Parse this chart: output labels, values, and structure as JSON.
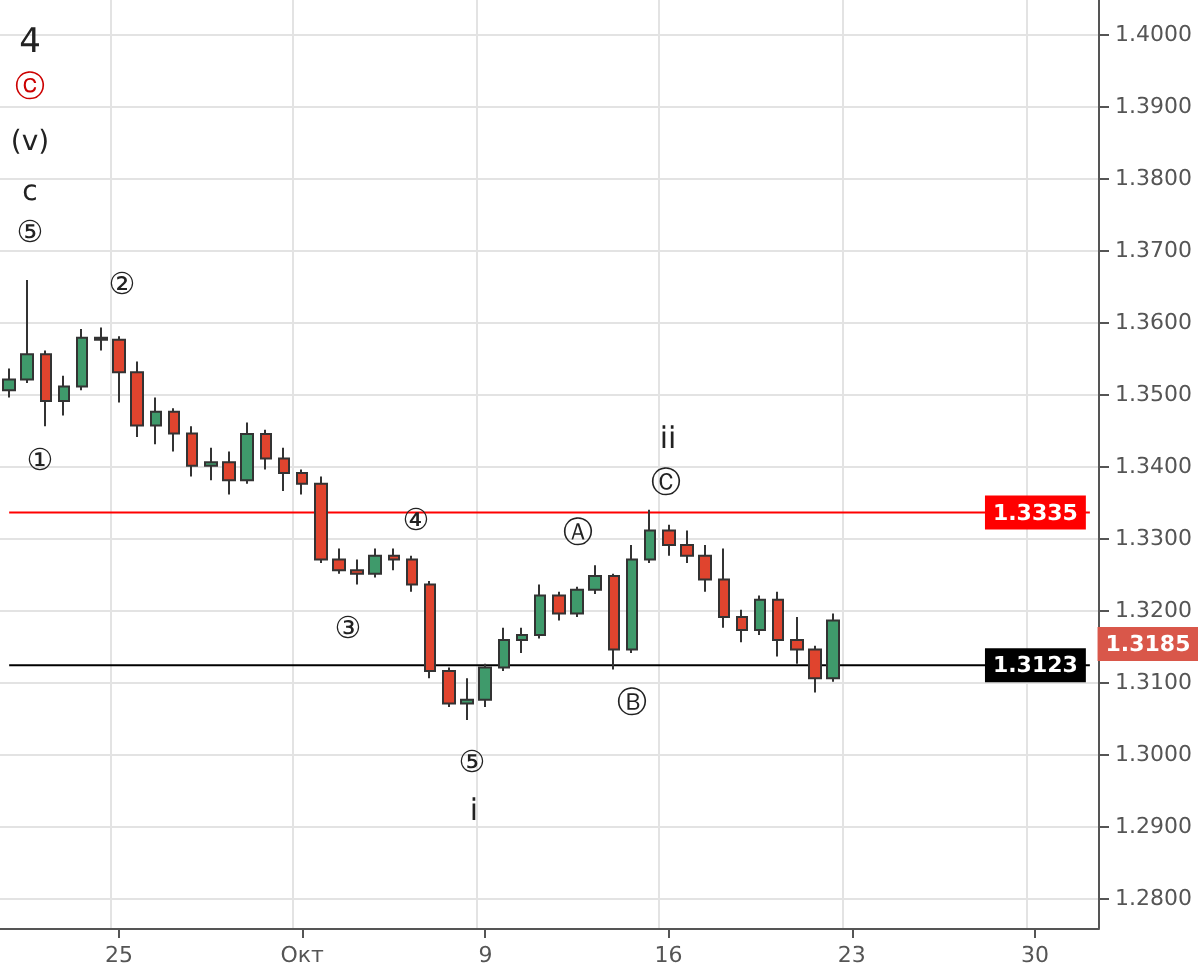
{
  "chart_data": {
    "type": "candlestick",
    "categories": [
      null,
      null,
      null,
      null,
      null,
      null,
      "25",
      null,
      null,
      null,
      null,
      null,
      null,
      null,
      null,
      null,
      "Окт",
      null,
      null,
      null,
      null,
      null,
      null,
      null,
      null,
      null,
      "9",
      null,
      null,
      null,
      null,
      null,
      null,
      null,
      null,
      null,
      "16",
      null,
      null,
      null,
      null,
      null,
      null,
      null,
      null,
      null,
      "23",
      null,
      null,
      null,
      null,
      null,
      null,
      null,
      null,
      null,
      "30",
      null,
      null,
      null
    ],
    "ohlc": [
      [
        1.3505,
        1.3535,
        1.3495,
        1.352
      ],
      [
        1.352,
        1.3658,
        1.3515,
        1.3555
      ],
      [
        1.3555,
        1.356,
        1.3455,
        1.349
      ],
      [
        1.349,
        1.3525,
        1.347,
        1.351
      ],
      [
        1.351,
        1.359,
        1.3505,
        1.3578
      ],
      [
        1.3578,
        1.3592,
        1.356,
        1.3575
      ],
      [
        1.3575,
        1.358,
        1.3488,
        1.353
      ],
      [
        1.353,
        1.3545,
        1.344,
        1.3456
      ],
      [
        1.3456,
        1.3495,
        1.343,
        1.3475
      ],
      [
        1.3475,
        1.348,
        1.342,
        1.3445
      ],
      [
        1.3445,
        1.3455,
        1.3385,
        1.34
      ],
      [
        1.34,
        1.3425,
        1.338,
        1.3405
      ],
      [
        1.3405,
        1.342,
        1.336,
        1.338
      ],
      [
        1.338,
        1.346,
        1.3375,
        1.3444
      ],
      [
        1.3444,
        1.345,
        1.3395,
        1.341
      ],
      [
        1.341,
        1.3425,
        1.3365,
        1.339
      ],
      [
        1.339,
        1.3395,
        1.336,
        1.3375
      ],
      [
        1.3375,
        1.3385,
        1.3265,
        1.327
      ],
      [
        1.327,
        1.3285,
        1.325,
        1.3255
      ],
      [
        1.3255,
        1.327,
        1.3235,
        1.325
      ],
      [
        1.325,
        1.3285,
        1.3245,
        1.3275
      ],
      [
        1.3275,
        1.3285,
        1.3255,
        1.327
      ],
      [
        1.327,
        1.3275,
        1.3225,
        1.3235
      ],
      [
        1.3235,
        1.324,
        1.3105,
        1.3115
      ],
      [
        1.3115,
        1.312,
        1.3065,
        1.307
      ],
      [
        1.307,
        1.3105,
        1.3047,
        1.3075
      ],
      [
        1.3075,
        1.3125,
        1.3065,
        1.312
      ],
      [
        1.312,
        1.3175,
        1.3115,
        1.3158
      ],
      [
        1.3158,
        1.3175,
        1.314,
        1.3165
      ],
      [
        1.3165,
        1.3235,
        1.316,
        1.322
      ],
      [
        1.322,
        1.3225,
        1.3185,
        1.3195
      ],
      [
        1.3195,
        1.3232,
        1.319,
        1.3228
      ],
      [
        1.3228,
        1.3262,
        1.3222,
        1.3247
      ],
      [
        1.3247,
        1.325,
        1.3117,
        1.3145
      ],
      [
        1.3145,
        1.329,
        1.314,
        1.327
      ],
      [
        1.327,
        1.3339,
        1.3265,
        1.331
      ],
      [
        1.331,
        1.3318,
        1.3275,
        1.329
      ],
      [
        1.329,
        1.331,
        1.3265,
        1.3275
      ],
      [
        1.3275,
        1.329,
        1.3225,
        1.3242
      ],
      [
        1.3242,
        1.3285,
        1.3175,
        1.319
      ],
      [
        1.319,
        1.32,
        1.3155,
        1.3172
      ],
      [
        1.3172,
        1.322,
        1.3165,
        1.3214
      ],
      [
        1.3214,
        1.3225,
        1.3135,
        1.3158
      ],
      [
        1.3158,
        1.319,
        1.3125,
        1.3145
      ],
      [
        1.3145,
        1.315,
        1.3085,
        1.3105
      ],
      [
        1.3105,
        1.3195,
        1.31,
        1.3185
      ],
      null,
      null,
      null,
      null,
      null,
      null,
      null,
      null,
      null,
      null,
      null,
      null,
      null,
      null
    ],
    "ylim": [
      1.2758,
      1.4047
    ],
    "yticks": [
      {
        "value": 1.28,
        "label": "1.2800"
      },
      {
        "value": 1.29,
        "label": "1.2900"
      },
      {
        "value": 1.3,
        "label": "1.3000"
      },
      {
        "value": 1.31,
        "label": "1.3100"
      },
      {
        "value": 1.32,
        "label": "1.3200"
      },
      {
        "value": 1.33,
        "label": "1.3300"
      },
      {
        "value": 1.34,
        "label": "1.3400"
      },
      {
        "value": 1.35,
        "label": "1.3500"
      },
      {
        "value": 1.36,
        "label": "1.3600"
      },
      {
        "value": 1.37,
        "label": "1.3700"
      },
      {
        "value": 1.38,
        "label": "1.3800"
      },
      {
        "value": 1.39,
        "label": "1.3900"
      },
      {
        "value": 1.4,
        "label": "1.4000"
      }
    ],
    "grid": true,
    "ref_lines": [
      {
        "axis": "y",
        "value": 1.3335,
        "label": "1.3335",
        "color": "#ff0000"
      },
      {
        "axis": "y",
        "value": 1.3123,
        "label": "1.3123",
        "color": "#000000"
      }
    ],
    "annotations": [
      "4",
      "ⓒ",
      "(v)",
      "c",
      "⑤",
      "②",
      "①",
      "④",
      "③",
      "⑤",
      "i",
      "Ⓐ",
      "ii",
      "Ⓒ",
      "Ⓑ",
      "1.3185"
    ]
  }
}
